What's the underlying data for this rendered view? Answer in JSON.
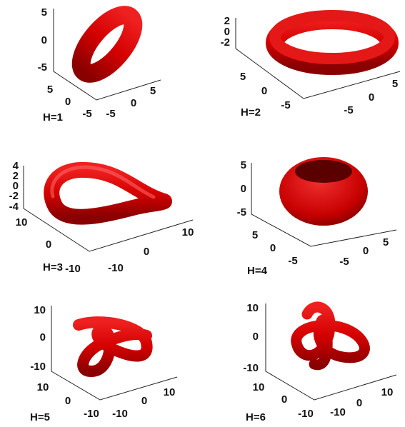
{
  "panels": [
    {
      "label": "H=1",
      "z_ticks": [
        5,
        0,
        -5
      ],
      "x_ticks": [
        5,
        0,
        -5
      ],
      "y_ticks": [
        -5,
        0,
        5
      ]
    },
    {
      "label": "H=2",
      "z_ticks": [
        2,
        0,
        -2
      ],
      "x_ticks": [
        5,
        0,
        -5
      ],
      "y_ticks": [
        -5,
        0,
        5
      ]
    },
    {
      "label": "H=3",
      "z_ticks": [
        4,
        2,
        0,
        -2,
        -4
      ],
      "x_ticks": [
        10,
        0,
        -10
      ],
      "y_ticks": [
        -10,
        0,
        10
      ]
    },
    {
      "label": "H=4",
      "z_ticks": [
        5,
        0,
        -5
      ],
      "x_ticks": [
        5,
        0,
        -5
      ],
      "y_ticks": [
        -5,
        0,
        5
      ]
    },
    {
      "label": "H=5",
      "z_ticks": [
        10,
        0,
        -10
      ],
      "x_ticks": [
        10,
        0,
        -10
      ],
      "y_ticks": [
        -10,
        0,
        10
      ]
    },
    {
      "label": "H=6",
      "z_ticks": [
        10,
        0,
        -10
      ],
      "x_ticks": [
        10,
        0,
        -10
      ],
      "y_ticks": [
        -10,
        0,
        10
      ]
    }
  ]
}
